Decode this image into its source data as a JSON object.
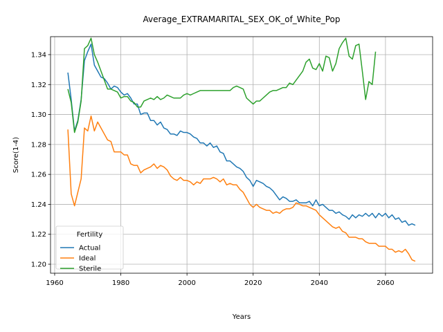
{
  "chart_data": {
    "type": "line",
    "title": "Average_EXTRAMARITAL_SEX_OK_of_White_Pop",
    "x_label": "Years",
    "y_label": "Score(1-4)",
    "x": [
      1964,
      1965,
      1966,
      1967,
      1968,
      1969,
      1970,
      1971,
      1972,
      1973,
      1974,
      1975,
      1976,
      1977,
      1978,
      1979,
      1980,
      1981,
      1982,
      1983,
      1984,
      1985,
      1986,
      1987,
      1988,
      1989,
      1990,
      1991,
      1992,
      1993,
      1994,
      1995,
      1996,
      1997,
      1998,
      1999,
      2000,
      2001,
      2002,
      2003,
      2004,
      2005,
      2006,
      2007,
      2008,
      2009,
      2010,
      2011,
      2012,
      2013,
      2014,
      2015,
      2016,
      2017,
      2018,
      2019,
      2020,
      2021,
      2022,
      2023,
      2024,
      2025,
      2026,
      2027,
      2028,
      2029,
      2030,
      2031,
      2032,
      2033,
      2034,
      2035,
      2036,
      2037,
      2038,
      2039,
      2040,
      2041,
      2042,
      2043,
      2044,
      2045,
      2046,
      2047,
      2048,
      2049,
      2050,
      2051,
      2052,
      2053,
      2054,
      2055,
      2056,
      2057,
      2058,
      2059,
      2060,
      2061,
      2062,
      2063,
      2064,
      2065,
      2066,
      2067,
      2068,
      2069
    ],
    "series": [
      {
        "name": "Actual",
        "color": "#1f77b4",
        "values": [
          1.328,
          1.31,
          1.289,
          1.296,
          1.31,
          1.336,
          1.342,
          1.347,
          1.333,
          1.329,
          1.325,
          1.324,
          1.321,
          1.317,
          1.319,
          1.318,
          1.315,
          1.313,
          1.314,
          1.311,
          1.307,
          1.307,
          1.3,
          1.301,
          1.301,
          1.296,
          1.296,
          1.293,
          1.295,
          1.291,
          1.29,
          1.287,
          1.287,
          1.286,
          1.289,
          1.288,
          1.288,
          1.287,
          1.285,
          1.284,
          1.281,
          1.281,
          1.279,
          1.281,
          1.278,
          1.279,
          1.275,
          1.274,
          1.269,
          1.269,
          1.267,
          1.265,
          1.264,
          1.262,
          1.258,
          1.256,
          1.252,
          1.256,
          1.255,
          1.254,
          1.252,
          1.251,
          1.249,
          1.246,
          1.243,
          1.245,
          1.244,
          1.242,
          1.242,
          1.243,
          1.241,
          1.241,
          1.241,
          1.242,
          1.239,
          1.243,
          1.239,
          1.24,
          1.238,
          1.236,
          1.236,
          1.234,
          1.235,
          1.233,
          1.232,
          1.23,
          1.233,
          1.231,
          1.233,
          1.232,
          1.234,
          1.232,
          1.234,
          1.231,
          1.234,
          1.232,
          1.234,
          1.231,
          1.233,
          1.23,
          1.231,
          1.228,
          1.229,
          1.226,
          1.227,
          1.226
        ]
      },
      {
        "name": "Ideal",
        "color": "#ff7f0e",
        "values": [
          1.29,
          1.247,
          1.239,
          1.248,
          1.257,
          1.291,
          1.289,
          1.299,
          1.289,
          1.295,
          1.291,
          1.287,
          1.283,
          1.282,
          1.275,
          1.275,
          1.275,
          1.273,
          1.273,
          1.267,
          1.266,
          1.266,
          1.261,
          1.263,
          1.264,
          1.265,
          1.267,
          1.264,
          1.266,
          1.265,
          1.263,
          1.259,
          1.257,
          1.256,
          1.258,
          1.256,
          1.256,
          1.255,
          1.253,
          1.255,
          1.254,
          1.257,
          1.257,
          1.257,
          1.258,
          1.257,
          1.255,
          1.257,
          1.253,
          1.254,
          1.253,
          1.253,
          1.25,
          1.248,
          1.244,
          1.24,
          1.238,
          1.24,
          1.238,
          1.237,
          1.236,
          1.236,
          1.234,
          1.235,
          1.234,
          1.236,
          1.237,
          1.237,
          1.238,
          1.241,
          1.24,
          1.239,
          1.239,
          1.238,
          1.237,
          1.236,
          1.233,
          1.231,
          1.229,
          1.227,
          1.225,
          1.224,
          1.225,
          1.222,
          1.221,
          1.218,
          1.218,
          1.218,
          1.217,
          1.217,
          1.215,
          1.214,
          1.214,
          1.214,
          1.212,
          1.212,
          1.212,
          1.21,
          1.21,
          1.208,
          1.209,
          1.208,
          1.21,
          1.207,
          1.203,
          1.202
        ]
      },
      {
        "name": "Sterile",
        "color": "#2ca02c",
        "values": [
          1.317,
          1.308,
          1.288,
          1.295,
          1.309,
          1.344,
          1.346,
          1.351,
          1.34,
          1.335,
          1.329,
          1.323,
          1.317,
          1.317,
          1.316,
          1.315,
          1.311,
          1.312,
          1.312,
          1.309,
          1.308,
          1.305,
          1.305,
          1.309,
          1.31,
          1.311,
          1.31,
          1.312,
          1.31,
          1.311,
          1.313,
          1.312,
          1.311,
          1.311,
          1.311,
          1.313,
          1.314,
          1.313,
          1.314,
          1.315,
          1.316,
          1.316,
          1.316,
          1.316,
          1.316,
          1.316,
          1.316,
          1.316,
          1.316,
          1.316,
          1.318,
          1.319,
          1.318,
          1.317,
          1.311,
          1.309,
          1.307,
          1.309,
          1.309,
          1.311,
          1.313,
          1.315,
          1.316,
          1.316,
          1.317,
          1.318,
          1.318,
          1.321,
          1.32,
          1.323,
          1.326,
          1.329,
          1.335,
          1.337,
          1.331,
          1.33,
          1.334,
          1.329,
          1.339,
          1.338,
          1.329,
          1.334,
          1.344,
          1.348,
          1.351,
          1.339,
          1.337,
          1.346,
          1.347,
          1.329,
          1.31,
          1.322,
          1.32,
          1.342,
          null,
          null,
          null,
          null,
          null,
          null,
          null,
          null,
          null,
          null,
          null,
          null
        ]
      }
    ],
    "xlim": [
      1958.75,
      2074.25
    ],
    "xticks": [
      1960,
      1980,
      2000,
      2020,
      2040,
      2060
    ],
    "ylim": [
      1.194,
      1.352
    ],
    "yticks": [
      {
        "value": 1.2,
        "label": "1.20"
      },
      1.22,
      1.24,
      1.26,
      1.28,
      {
        "value": 1.3,
        "label": "1.30"
      },
      1.32,
      1.34
    ],
    "grid": true,
    "legend_title": "Fertility",
    "legend_position": "lower left"
  }
}
